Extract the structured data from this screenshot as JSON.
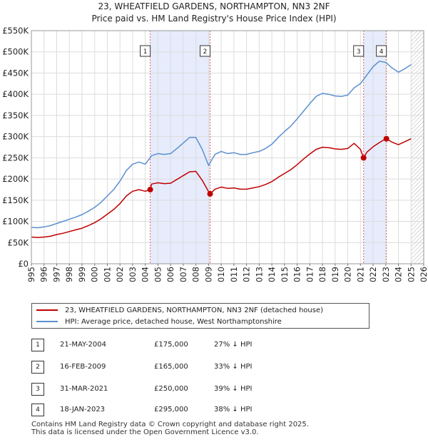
{
  "title_line1": "23, WHEATFIELD GARDENS, NORTHAMPTON, NN3 2NF",
  "title_line2": "Price paid vs. HM Land Registry's House Price Index (HPI)",
  "legend": [
    {
      "label": "23, WHEATFIELD GARDENS, NORTHAMPTON, NN3 2NF (detached house)",
      "color": "#c00000"
    },
    {
      "label": "HPI: Average price, detached house, West Northamptonshire",
      "color": "#5a8fd0"
    }
  ],
  "transactions": [
    {
      "num": "1",
      "date": "21-MAY-2004",
      "price": "£175,000",
      "hpi": "27% ↓ HPI"
    },
    {
      "num": "2",
      "date": "16-FEB-2009",
      "price": "£165,000",
      "hpi": "33% ↓ HPI"
    },
    {
      "num": "3",
      "date": "31-MAR-2021",
      "price": "£250,000",
      "hpi": "39% ↓ HPI"
    },
    {
      "num": "4",
      "date": "18-JAN-2023",
      "price": "£295,000",
      "hpi": "38% ↓ HPI"
    }
  ],
  "footer_line1": "Contains HM Land Registry data © Crown copyright and database right 2025.",
  "footer_line2": "This data is licensed under the Open Government Licence v3.0.",
  "colors": {
    "property": "#c00000",
    "hpi": "#5a8fd0",
    "shade": "#dde6fb",
    "marker_line": "#e06060"
  },
  "chart_data": {
    "type": "line",
    "title": "23, WHEATFIELD GARDENS, NORTHAMPTON, NN3 2NF",
    "subtitle": "Price paid vs. HM Land Registry's House Price Index (HPI)",
    "xlabel": "",
    "ylabel": "",
    "xlim": [
      1995,
      2026
    ],
    "ylim": [
      0,
      550000
    ],
    "yticks": [
      0,
      50000,
      100000,
      150000,
      200000,
      250000,
      300000,
      350000,
      400000,
      450000,
      500000,
      550000
    ],
    "ytick_labels": [
      "£0",
      "£50K",
      "£100K",
      "£150K",
      "£200K",
      "£250K",
      "£300K",
      "£350K",
      "£400K",
      "£450K",
      "£500K",
      "£550K"
    ],
    "xticks": [
      1995,
      1996,
      1997,
      1998,
      1999,
      2000,
      2001,
      2002,
      2003,
      2004,
      2005,
      2006,
      2007,
      2008,
      2009,
      2010,
      2011,
      2012,
      2013,
      2014,
      2015,
      2016,
      2017,
      2018,
      2019,
      2020,
      2021,
      2022,
      2023,
      2024,
      2025,
      2026
    ],
    "grid": true,
    "shaded_ranges": [
      [
        2004.39,
        2009.12
      ],
      [
        2021.25,
        2023.05
      ]
    ],
    "hatched_from": 2025.0,
    "series": [
      {
        "name": "HPI: Average price, detached house, West Northamptonshire",
        "x": [
          1995,
          1995.5,
          1996,
          1996.5,
          1997,
          1997.5,
          1998,
          1998.5,
          1999,
          1999.5,
          2000,
          2000.5,
          2001,
          2001.5,
          2002,
          2002.5,
          2003,
          2003.5,
          2004,
          2004.5,
          2005,
          2005.5,
          2006,
          2006.5,
          2007,
          2007.5,
          2008,
          2008.5,
          2009,
          2009.5,
          2010,
          2010.5,
          2011,
          2011.5,
          2012,
          2012.5,
          2013,
          2013.5,
          2014,
          2014.5,
          2015,
          2015.5,
          2016,
          2016.5,
          2017,
          2017.5,
          2018,
          2018.5,
          2019,
          2019.5,
          2020,
          2020.5,
          2021,
          2021.5,
          2022,
          2022.5,
          2023,
          2023.5,
          2024,
          2024.5,
          2025
        ],
        "values": [
          86000,
          85000,
          87000,
          90000,
          95000,
          100000,
          105000,
          110000,
          116000,
          124000,
          133000,
          145000,
          160000,
          175000,
          195000,
          220000,
          235000,
          240000,
          235000,
          255000,
          260000,
          258000,
          260000,
          272000,
          285000,
          298000,
          298000,
          270000,
          232000,
          258000,
          265000,
          260000,
          262000,
          258000,
          258000,
          262000,
          265000,
          272000,
          282000,
          298000,
          312000,
          325000,
          342000,
          360000,
          378000,
          395000,
          402000,
          400000,
          396000,
          395000,
          398000,
          415000,
          425000,
          445000,
          465000,
          478000,
          475000,
          462000,
          452000,
          460000,
          470000
        ]
      },
      {
        "name": "23, WHEATFIELD GARDENS, NORTHAMPTON, NN3 2NF (detached house)",
        "x": [
          1995,
          1995.5,
          1996,
          1996.5,
          1997,
          1997.5,
          1998,
          1998.5,
          1999,
          1999.5,
          2000,
          2000.5,
          2001,
          2001.5,
          2002,
          2002.5,
          2003,
          2003.5,
          2004,
          2004.39,
          2004.5,
          2005,
          2005.5,
          2006,
          2006.5,
          2007,
          2007.5,
          2008,
          2008.5,
          2009,
          2009.12,
          2009.5,
          2010,
          2010.5,
          2011,
          2011.5,
          2012,
          2012.5,
          2013,
          2013.5,
          2014,
          2014.5,
          2015,
          2015.5,
          2016,
          2016.5,
          2017,
          2017.5,
          2018,
          2018.5,
          2019,
          2019.5,
          2020,
          2020.5,
          2021,
          2021.25,
          2021.5,
          2022,
          2022.5,
          2023,
          2023.05,
          2023.5,
          2024,
          2024.5,
          2025
        ],
        "values": [
          63000,
          62000,
          63000,
          65000,
          69000,
          72000,
          76000,
          80000,
          84000,
          90000,
          97000,
          106000,
          117000,
          128000,
          142000,
          160000,
          171000,
          175000,
          171000,
          175000,
          188000,
          191000,
          189000,
          190000,
          199000,
          208000,
          217000,
          218000,
          197000,
          170000,
          165000,
          176000,
          181000,
          178000,
          179000,
          176000,
          176000,
          179000,
          182000,
          187000,
          194000,
          204000,
          213000,
          222000,
          234000,
          247000,
          259000,
          270000,
          275000,
          274000,
          271000,
          270000,
          272000,
          284000,
          270000,
          250000,
          263000,
          276000,
          286000,
          295000,
          295000,
          287000,
          281000,
          288000,
          295000
        ]
      }
    ],
    "sale_points": [
      {
        "label": "1",
        "x": 2004.39,
        "value": 175000
      },
      {
        "label": "2",
        "x": 2009.12,
        "value": 165000
      },
      {
        "label": "3",
        "x": 2021.25,
        "value": 250000
      },
      {
        "label": "4",
        "x": 2023.05,
        "value": 295000
      }
    ]
  }
}
